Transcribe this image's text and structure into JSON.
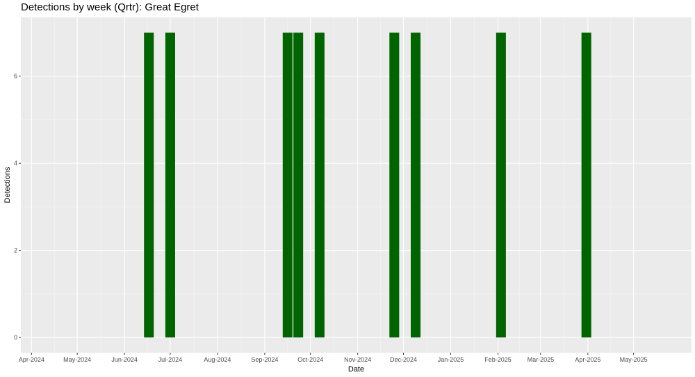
{
  "chart_data": {
    "type": "bar",
    "title": "Detections by week (Qrtr): Great Egret",
    "xlabel": "Date",
    "ylabel": "Detections",
    "x_range": [
      "2024-03-25",
      "2025-06-08"
    ],
    "ylim": [
      -0.35,
      7.35
    ],
    "y_ticks": [
      0,
      2,
      4,
      6
    ],
    "x_ticks": [
      {
        "date": "2024-04-01",
        "label": "Apr-2024"
      },
      {
        "date": "2024-05-01",
        "label": "May-2024"
      },
      {
        "date": "2024-06-01",
        "label": "Jun-2024"
      },
      {
        "date": "2024-07-01",
        "label": "Jul-2024"
      },
      {
        "date": "2024-08-01",
        "label": "Aug-2024"
      },
      {
        "date": "2024-09-01",
        "label": "Sep-2024"
      },
      {
        "date": "2024-10-01",
        "label": "Oct-2024"
      },
      {
        "date": "2024-11-01",
        "label": "Nov-2024"
      },
      {
        "date": "2024-12-01",
        "label": "Dec-2024"
      },
      {
        "date": "2025-01-01",
        "label": "Jan-2025"
      },
      {
        "date": "2025-02-01",
        "label": "Feb-2025"
      },
      {
        "date": "2025-03-01",
        "label": "Mar-2025"
      },
      {
        "date": "2025-04-01",
        "label": "Apr-2025"
      },
      {
        "date": "2025-05-01",
        "label": "May-2025"
      }
    ],
    "bars": [
      {
        "date": "2024-06-17",
        "value": 7
      },
      {
        "date": "2024-07-01",
        "value": 7
      },
      {
        "date": "2024-09-16",
        "value": 7
      },
      {
        "date": "2024-09-23",
        "value": 7
      },
      {
        "date": "2024-10-07",
        "value": 7
      },
      {
        "date": "2024-11-25",
        "value": 7
      },
      {
        "date": "2024-12-09",
        "value": 7
      },
      {
        "date": "2025-02-03",
        "value": 7
      },
      {
        "date": "2025-03-31",
        "value": 7
      }
    ],
    "bar_color": "#006400",
    "panel_color": "#ebebeb",
    "grid": true,
    "legend": false
  }
}
